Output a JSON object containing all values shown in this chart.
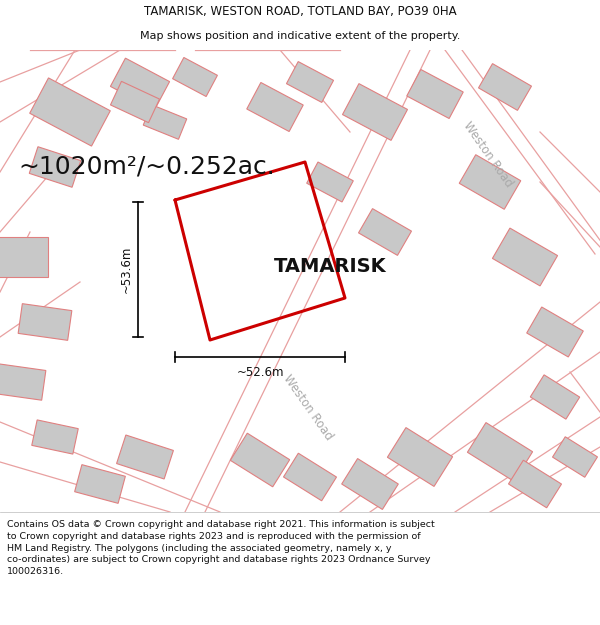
{
  "title_line1": "TAMARISK, WESTON ROAD, TOTLAND BAY, PO39 0HA",
  "title_line2": "Map shows position and indicative extent of the property.",
  "area_text": "~1020m²/~0.252ac.",
  "property_name": "TAMARISK",
  "dim_vertical": "~53.6m",
  "dim_horizontal": "~52.6m",
  "road_label_upper": "Weston Road",
  "road_label_lower": "Weston Road",
  "footer_text": "Contains OS data © Crown copyright and database right 2021. This information is subject to Crown copyright and database rights 2023 and is reproduced with the permission of HM Land Registry. The polygons (including the associated geometry, namely x, y co-ordinates) are subject to Crown copyright and database rights 2023 Ordnance Survey 100026316.",
  "plot_color": "#cc0000",
  "building_color": "#c8c8c8",
  "building_edge": "#e08080",
  "road_line_color": "#e8a0a0",
  "dim_line_color": "#000000",
  "map_bg": "#ffffff",
  "title_fontsize": 8.5,
  "subtitle_fontsize": 8.0,
  "area_fontsize": 18,
  "property_fontsize": 14,
  "dim_fontsize": 8.5,
  "road_fontsize": 8.5
}
